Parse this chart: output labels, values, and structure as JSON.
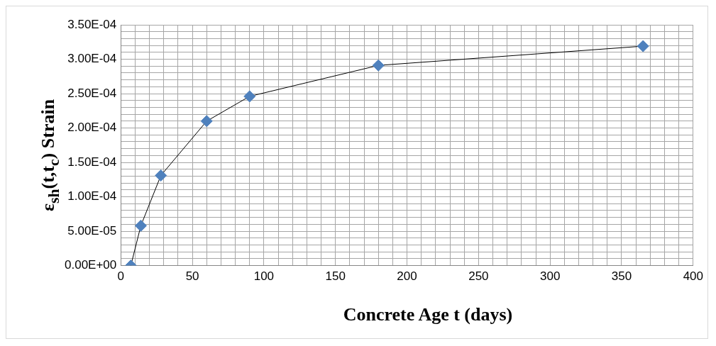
{
  "chart_data": {
    "type": "line",
    "xlabel": "Concrete Age t (days)",
    "ylabel": "ε$_{sh}$(t,t$_{c}$)  Strain",
    "x": [
      7,
      14,
      28,
      60,
      90,
      180,
      365
    ],
    "series": [
      {
        "color": "#4f81bd",
        "values": [
          0,
          5.8e-05,
          0.000131,
          0.00021,
          0.000246,
          0.000291,
          0.000319
        ]
      }
    ],
    "marker": "diamond",
    "line_style": "solid",
    "grid": true,
    "legend": false,
    "xlim": [
      0,
      400
    ],
    "xticks": [
      0,
      {
        "value": 10,
        "label": null
      },
      {
        "value": 20,
        "label": null
      },
      {
        "value": 30,
        "label": null
      },
      {
        "value": 40,
        "label": null
      },
      50,
      {
        "value": 60,
        "label": null
      },
      {
        "value": 70,
        "label": null
      },
      {
        "value": 80,
        "label": null
      },
      {
        "value": 90,
        "label": null
      },
      100,
      {
        "value": 110,
        "label": null
      },
      {
        "value": 120,
        "label": null
      },
      {
        "value": 130,
        "label": null
      },
      {
        "value": 140,
        "label": null
      },
      150,
      {
        "value": 160,
        "label": null
      },
      {
        "value": 170,
        "label": null
      },
      {
        "value": 180,
        "label": null
      },
      {
        "value": 190,
        "label": null
      },
      200,
      {
        "value": 210,
        "label": null
      },
      {
        "value": 220,
        "label": null
      },
      {
        "value": 230,
        "label": null
      },
      {
        "value": 240,
        "label": null
      },
      250,
      {
        "value": 260,
        "label": null
      },
      {
        "value": 270,
        "label": null
      },
      {
        "value": 280,
        "label": null
      },
      {
        "value": 290,
        "label": null
      },
      300,
      {
        "value": 310,
        "label": null
      },
      {
        "value": 320,
        "label": null
      },
      {
        "value": 330,
        "label": null
      },
      {
        "value": 340,
        "label": null
      },
      350,
      {
        "value": 360,
        "label": null
      },
      {
        "value": 370,
        "label": null
      },
      {
        "value": 380,
        "label": null
      },
      {
        "value": 390,
        "label": null
      },
      400
    ],
    "ylim": [
      0,
      0.00035
    ],
    "yticks": [
      {
        "value": 0,
        "label": "0.00E+00"
      },
      {
        "value": 1e-05,
        "label": null
      },
      {
        "value": 2e-05,
        "label": null
      },
      {
        "value": 3e-05,
        "label": null
      },
      {
        "value": 4e-05,
        "label": null
      },
      {
        "value": 5e-05,
        "label": "5.00E-05"
      },
      {
        "value": 6e-05,
        "label": null
      },
      {
        "value": 7e-05,
        "label": null
      },
      {
        "value": 8e-05,
        "label": null
      },
      {
        "value": 9e-05,
        "label": null
      },
      {
        "value": 0.0001,
        "label": "1.00E-04"
      },
      {
        "value": 0.00011,
        "label": null
      },
      {
        "value": 0.00012,
        "label": null
      },
      {
        "value": 0.00013,
        "label": null
      },
      {
        "value": 0.00014,
        "label": null
      },
      {
        "value": 0.00015,
        "label": "1.50E-04"
      },
      {
        "value": 0.00016,
        "label": null
      },
      {
        "value": 0.00017,
        "label": null
      },
      {
        "value": 0.00018,
        "label": null
      },
      {
        "value": 0.00019,
        "label": null
      },
      {
        "value": 0.0002,
        "label": "2.00E-04"
      },
      {
        "value": 0.00021,
        "label": null
      },
      {
        "value": 0.00022,
        "label": null
      },
      {
        "value": 0.00023,
        "label": null
      },
      {
        "value": 0.00024,
        "label": null
      },
      {
        "value": 0.00025,
        "label": "2.50E-04"
      },
      {
        "value": 0.00026,
        "label": null
      },
      {
        "value": 0.00027,
        "label": null
      },
      {
        "value": 0.00028,
        "label": null
      },
      {
        "value": 0.00029,
        "label": null
      },
      {
        "value": 0.0003,
        "label": "3.00E-04"
      },
      {
        "value": 0.00031,
        "label": null
      },
      {
        "value": 0.00032,
        "label": null
      },
      {
        "value": 0.00033,
        "label": null
      },
      {
        "value": 0.00034,
        "label": null
      },
      {
        "value": 0.00035,
        "label": "3.50E-04"
      }
    ]
  }
}
